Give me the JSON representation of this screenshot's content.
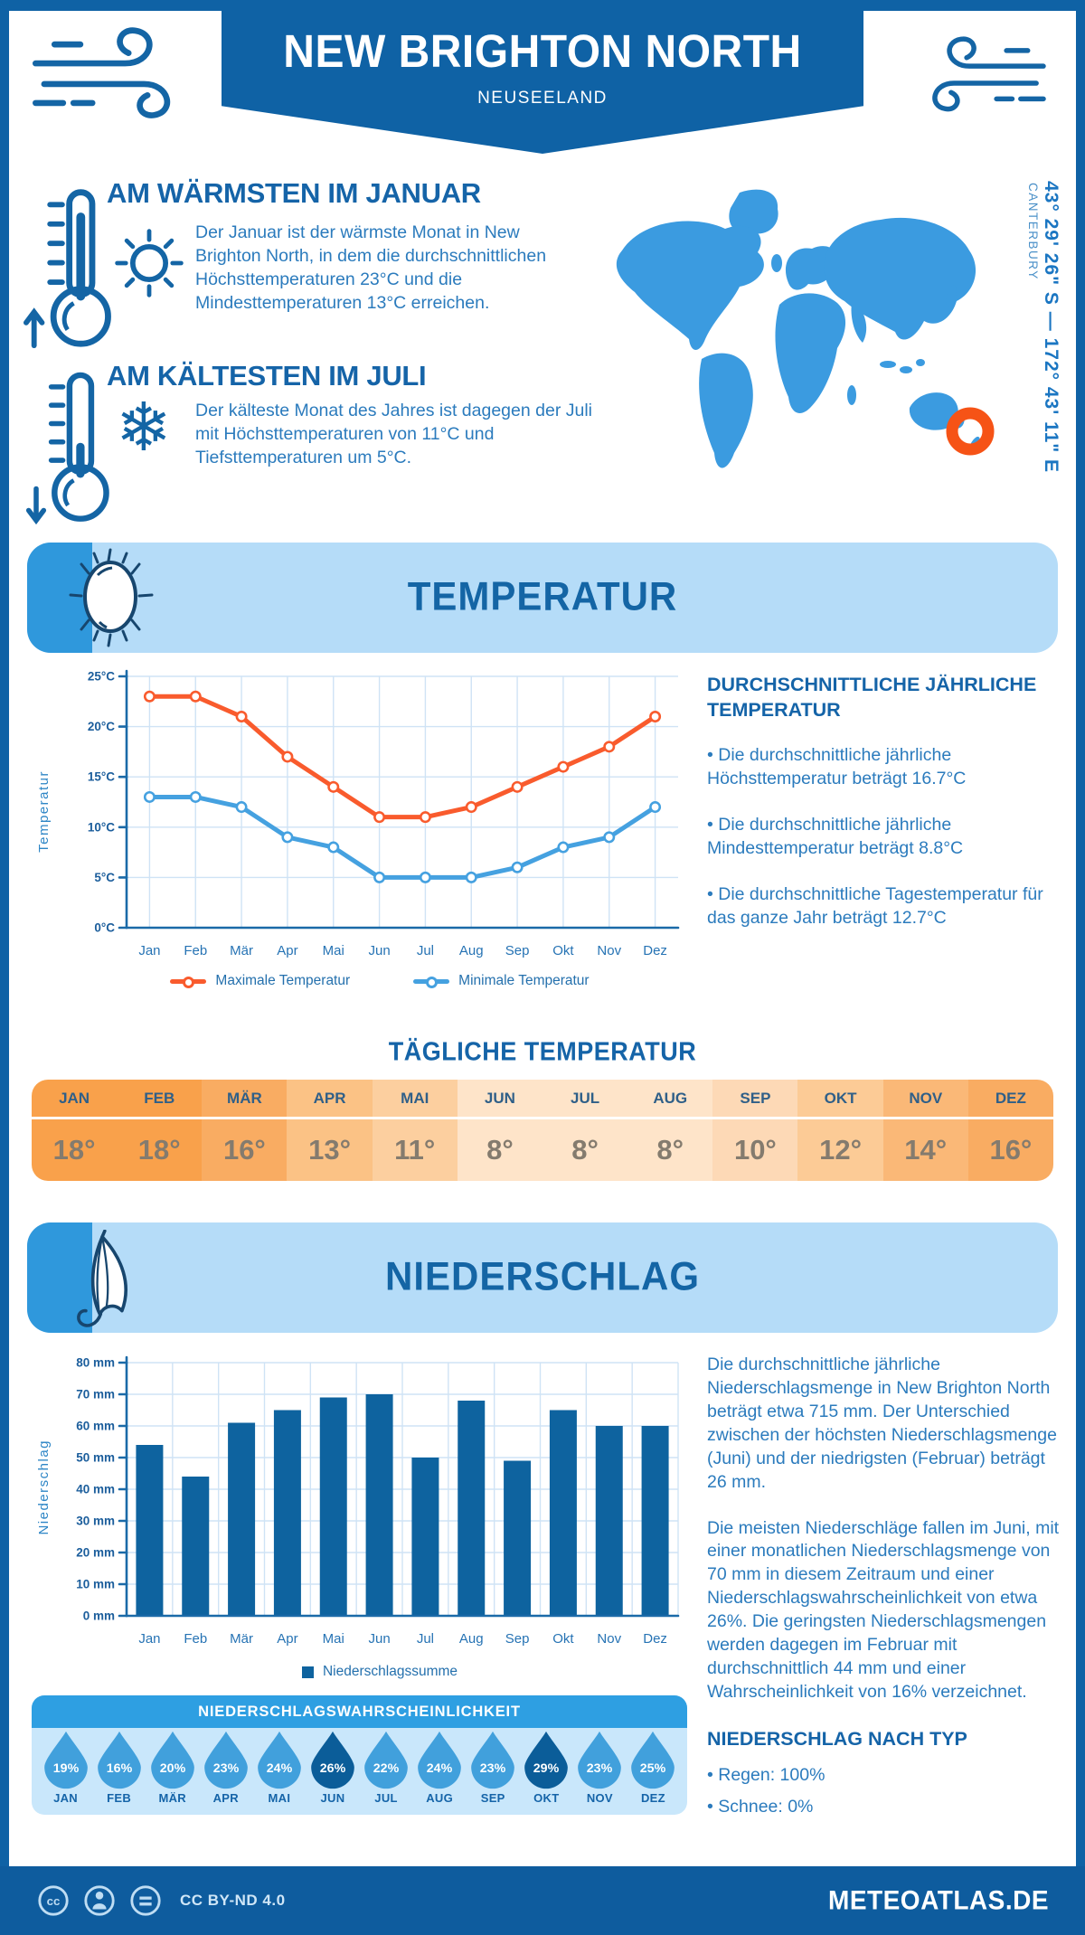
{
  "header": {
    "title": "NEW BRIGHTON NORTH",
    "subtitle": "NEUSEELAND"
  },
  "highlights": {
    "warm": {
      "title": "AM WÄRMSTEN IM JANUAR",
      "text": "Der Januar ist der wärmste Monat in New Brighton North, in dem die durchschnittlichen Höchsttemperaturen 23°C und die Mindesttemperaturen 13°C erreichen."
    },
    "cold": {
      "title": "AM KÄLTESTEN IM JULI",
      "text": "Der kälteste Monat des Jahres ist dagegen der Juli mit Höchsttemperaturen von 11°C und Tiefsttemperaturen um 5°C."
    }
  },
  "map": {
    "coordinates": "43° 29' 26\" S — 172° 43' 11\" E",
    "region": "CANTERBURY",
    "land_color": "#3B9BE0",
    "marker_color": "#F65316"
  },
  "months_upper": [
    "JAN",
    "FEB",
    "MÄR",
    "APR",
    "MAI",
    "JUN",
    "JUL",
    "AUG",
    "SEP",
    "OKT",
    "NOV",
    "DEZ"
  ],
  "temperature": {
    "section_title": "TEMPERATUR",
    "right_panel": {
      "title": "DURCHSCHNITTLICHE JÄHRLICHE TEMPERATUR",
      "bullets": [
        "• Die durchschnittliche jährliche Höchsttemperatur beträgt 16.7°C",
        "• Die durchschnittliche jährliche Mindesttemperatur beträgt 8.8°C",
        "• Die durchschnittliche Tagestemperatur für das ganze Jahr beträgt 12.7°C"
      ]
    },
    "daily": {
      "title": "TÄGLICHE TEMPERATUR",
      "values": [
        "18°",
        "18°",
        "16°",
        "13°",
        "11°",
        "8°",
        "8°",
        "8°",
        "10°",
        "12°",
        "14°",
        "16°"
      ],
      "cell_colors": [
        "#F9A14B",
        "#F9A14B",
        "#F9AC62",
        "#FBC285",
        "#FCCF9F",
        "#FEE4C9",
        "#FEE4C9",
        "#FEE4C9",
        "#FDD9B6",
        "#FCCB96",
        "#FAB877",
        "#F9AC62"
      ]
    }
  },
  "precipitation": {
    "section_title": "NIEDERSCHLAG",
    "paragraphs": [
      "Die durchschnittliche jährliche Niederschlagsmenge in New Brighton North beträgt etwa 715 mm. Der Unterschied zwischen der höchsten Niederschlagsmenge (Juni) und der niedrigsten (Februar) beträgt 26 mm.",
      "Die meisten Niederschläge fallen im Juni, mit einer monatlichen Niederschlagsmenge von 70 mm in diesem Zeitraum und einer Niederschlagswahrscheinlichkeit von etwa 26%. Die geringsten Niederschlagsmengen werden dagegen im Februar mit durchschnittlich 44 mm und einer Wahrscheinlichkeit von 16% verzeichnet."
    ],
    "by_type": {
      "title": "NIEDERSCHLAG NACH TYP",
      "items": [
        "• Regen: 100%",
        "• Schnee: 0%"
      ]
    },
    "probability": {
      "title": "NIEDERSCHLAGSWAHRSCHEINLICHKEIT",
      "values": [
        "19%",
        "16%",
        "20%",
        "23%",
        "24%",
        "26%",
        "22%",
        "24%",
        "23%",
        "29%",
        "23%",
        "25%"
      ],
      "highlight_indices": [
        5,
        9
      ],
      "drop_color": "#41A0DC",
      "drop_color_highlight": "#0B5D99"
    }
  },
  "chart_data": [
    {
      "type": "line",
      "x": [
        "Jan",
        "Feb",
        "Mär",
        "Apr",
        "Mai",
        "Jun",
        "Jul",
        "Aug",
        "Sep",
        "Okt",
        "Nov",
        "Dez"
      ],
      "ylabel": "Temperatur",
      "ylim": [
        0,
        25
      ],
      "ytick_step": 5,
      "ytick_suffix": "°C",
      "grid": true,
      "legend_position": "bottom",
      "series": [
        {
          "name": "Maximale Temperatur",
          "color": "#F95B2D",
          "values": [
            23,
            23,
            21,
            17,
            14,
            11,
            11,
            12,
            14,
            16,
            18,
            21
          ]
        },
        {
          "name": "Minimale Temperatur",
          "color": "#45A1E0",
          "values": [
            13,
            13,
            12,
            9,
            8,
            5,
            5,
            5,
            6,
            8,
            9,
            12
          ]
        }
      ]
    },
    {
      "type": "bar",
      "categories": [
        "Jan",
        "Feb",
        "Mär",
        "Apr",
        "Mai",
        "Jun",
        "Jul",
        "Aug",
        "Sep",
        "Okt",
        "Nov",
        "Dez"
      ],
      "values": [
        54,
        44,
        61,
        65,
        69,
        70,
        50,
        68,
        49,
        65,
        60,
        60
      ],
      "ylabel": "Niederschlag",
      "ylim": [
        0,
        80
      ],
      "ytick_step": 10,
      "ytick_suffix": " mm",
      "grid": true,
      "legend": "Niederschlagssumme",
      "bar_color": "#0E639F"
    }
  ],
  "footer": {
    "license": "CC BY-ND 4.0",
    "site": "METEOATLAS.DE"
  }
}
